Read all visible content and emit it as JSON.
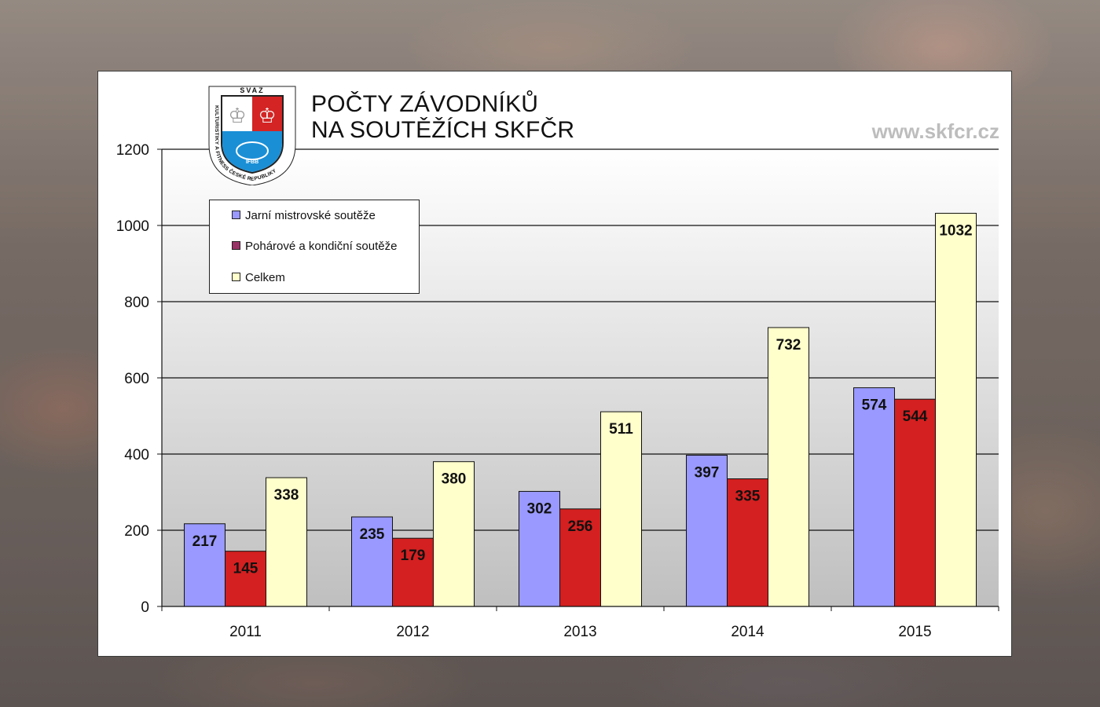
{
  "title_lines": [
    "POČTY ZÁVODNÍKŮ",
    "NA SOUTĚŽÍCH SKFČR"
  ],
  "website": "www.skfcr.cz",
  "logo": {
    "top_text": "SVAZ",
    "ring_text": "KULTURISTIKY A FITNESS ČESKÉ REPUBLIKY",
    "badge_text": "IFBB"
  },
  "colors": {
    "plot_bg_top": "#ffffff",
    "plot_bg_bottom": "#c0c0c0",
    "series": [
      "#9999ff",
      "#d42020",
      "#ffffcc"
    ]
  },
  "chart_data": {
    "type": "bar",
    "categories": [
      "2011",
      "2012",
      "2013",
      "2014",
      "2015"
    ],
    "series": [
      {
        "name": "Jarní mistrovské soutěže",
        "values": [
          217,
          235,
          302,
          397,
          574
        ]
      },
      {
        "name": "Pohárové a kondiční soutěže",
        "values": [
          145,
          179,
          256,
          335,
          544
        ]
      },
      {
        "name": "Celkem",
        "values": [
          338,
          380,
          511,
          732,
          1032
        ]
      }
    ],
    "ylim": [
      0,
      1200
    ],
    "yticks": [
      "0",
      "200",
      "400",
      "600",
      "800",
      "1000",
      "1200"
    ],
    "grid": true,
    "legend": "top-left",
    "data_labels": true
  }
}
